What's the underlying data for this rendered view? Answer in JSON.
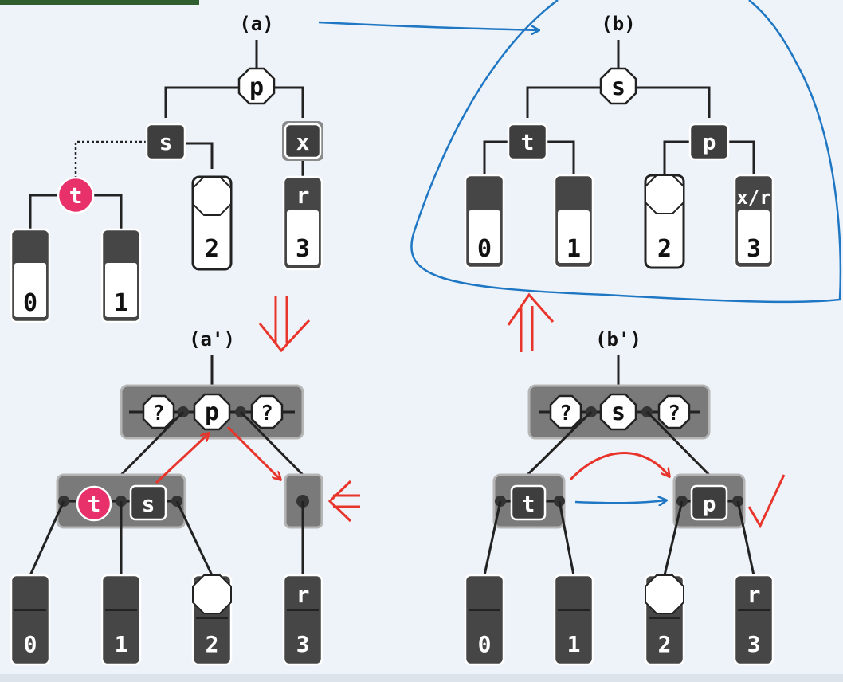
{
  "captions": {
    "a": "(a)",
    "b": "(b)",
    "a_prime": "(a')",
    "b_prime": "(b')"
  },
  "a": {
    "p": "p",
    "s": "s",
    "x": "x",
    "t": "t",
    "r": "r",
    "leaves": [
      "0",
      "1",
      "2",
      "3"
    ]
  },
  "b": {
    "s": "s",
    "t": "t",
    "p": "p",
    "xr": "x/r",
    "leaves": [
      "0",
      "1",
      "2",
      "3"
    ]
  },
  "a_prime": {
    "q1": "?",
    "p": "p",
    "q2": "?",
    "t": "t",
    "s": "s",
    "r": "r",
    "leaves": [
      "0",
      "1",
      "2",
      "3"
    ]
  },
  "b_prime": {
    "q1": "?",
    "s": "s",
    "q2": "?",
    "t": "t",
    "p": "p",
    "r": "r",
    "leaves": [
      "0",
      "1",
      "2",
      "3"
    ]
  },
  "colors": {
    "red_node": "#e8306a",
    "black_node": "#3e3e3e",
    "arrow_red": "#e8342a",
    "arrow_blue": "#1f77c4"
  }
}
